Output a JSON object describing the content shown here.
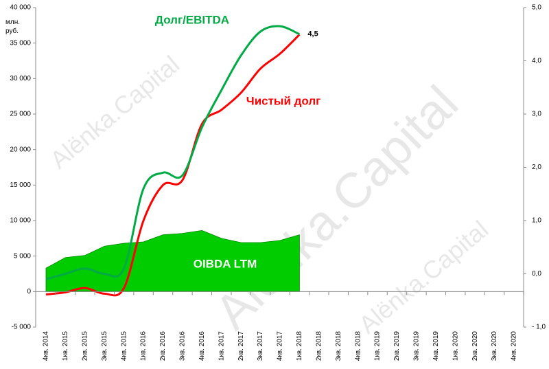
{
  "chart_data": {
    "type": "combo",
    "title": "Долг/EBITDA",
    "y_label": "млн. руб.",
    "watermark": "Alёnka.Capital",
    "categories": [
      "4кв. 2014",
      "1кв. 2015",
      "2кв. 2015",
      "3кв. 2015",
      "4кв. 2015",
      "1кв. 2016",
      "2кв. 2016",
      "3кв. 2016",
      "4кв. 2016",
      "1кв. 2017",
      "2кв. 2017",
      "3кв. 2017",
      "4кв. 2017",
      "1кв. 2018",
      "2кв. 2018",
      "3кв. 2018",
      "4кв. 2018",
      "1кв. 2019",
      "2кв. 2019",
      "3кв. 2019",
      "4кв. 2019",
      "1кв. 2020",
      "2кв. 2020",
      "3кв. 2020",
      "4кв. 2020"
    ],
    "ylim": [
      -5000,
      40000
    ],
    "yticks": [
      {
        "value": 40000,
        "label": "40 000"
      },
      {
        "value": 35000,
        "label": "35 000"
      },
      {
        "value": 30000,
        "label": "30 000"
      },
      {
        "value": 25000,
        "label": "25 000"
      },
      {
        "value": 20000,
        "label": "20 000"
      },
      {
        "value": 15000,
        "label": "15 000"
      },
      {
        "value": 10000,
        "label": "10 000"
      },
      {
        "value": 5000,
        "label": "5 000"
      },
      0,
      {
        "value": -5000,
        "label": "-5 000"
      }
    ],
    "y2lim": [
      -1,
      5
    ],
    "y2ticks": [
      {
        "value": 5,
        "label": "5,0"
      },
      {
        "value": 4,
        "label": "4,0"
      },
      {
        "value": 3,
        "label": "3,0"
      },
      {
        "value": 2,
        "label": "2,0"
      },
      {
        "value": 1,
        "label": "1,0"
      },
      {
        "value": 0,
        "label": "0,0"
      },
      {
        "value": -1,
        "label": "- 1,0"
      }
    ],
    "series": [
      {
        "name": "OIBDA LTM",
        "kind": "area",
        "color": "#00cc00",
        "values": [
          3300,
          4800,
          5100,
          6400,
          6800,
          7000,
          8000,
          8200,
          8600,
          7500,
          6900,
          6900,
          7200,
          8000,
          null,
          null,
          null,
          null,
          null,
          null,
          null,
          null,
          null,
          null,
          null
        ]
      },
      {
        "name": "Чистый долг",
        "kind": "line",
        "color": "#ff0000",
        "values": [
          -400,
          -100,
          500,
          -300,
          500,
          10000,
          15000,
          15700,
          23600,
          25600,
          28000,
          31400,
          33500,
          36200,
          null,
          null,
          null,
          null,
          null,
          null,
          null,
          null,
          null,
          null,
          null
        ]
      },
      {
        "name": "Долг/EBITDA",
        "kind": "line",
        "axis": "y2",
        "color": "#00aa44",
        "values": [
          -0.1,
          0.0,
          0.1,
          0.0,
          0.1,
          1.6,
          1.9,
          1.85,
          2.75,
          3.45,
          4.1,
          4.55,
          4.65,
          4.5,
          null,
          null,
          null,
          null,
          null,
          null,
          null,
          null,
          null,
          null,
          null
        ],
        "value_labels": [
          null,
          null,
          null,
          null,
          null,
          null,
          null,
          null,
          null,
          null,
          null,
          null,
          null,
          "4,5",
          null,
          null,
          null,
          null,
          null,
          null,
          null,
          null,
          null,
          null,
          null
        ]
      }
    ]
  }
}
